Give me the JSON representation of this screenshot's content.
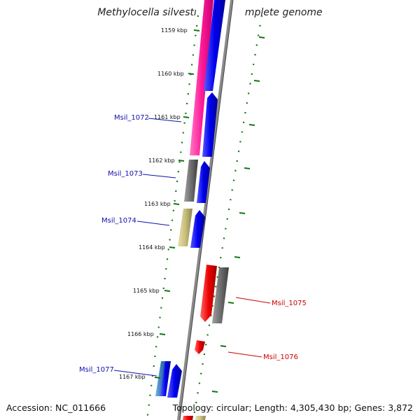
{
  "title": "Methylocella silvestris BL2, complete genome",
  "accession": "Accession: NC_011666",
  "topology": "Topology: circular; Length: 4,305,430 bp; Genes: 3,872",
  "tick_labels": [
    "1159 kbp",
    "1160 kbp",
    "1161 kbp",
    "1162 kbp",
    "1163 kbp",
    "1164 kbp",
    "1165 kbp",
    "1166 kbp",
    "1167 kbp"
  ],
  "genes": [
    {
      "name": "Msil_1072",
      "color": "#1010b0"
    },
    {
      "name": "Msil_1073",
      "color": "#1010b0"
    },
    {
      "name": "Msil_1074",
      "color": "#1010b0"
    },
    {
      "name": "Msil_1075",
      "color": "#cc0000"
    },
    {
      "name": "Msil_1076",
      "color": "#cc0000"
    },
    {
      "name": "Msil_1077",
      "color": "#1010b0"
    }
  ],
  "colors": {
    "magenta": "#ff1a9a",
    "blue": "#0000ee",
    "gray": "#6e6e6e",
    "khaki": "#c9bf7e",
    "red": "#ee0000",
    "steelblue": "#3a7fbf",
    "backbone": "#8a8a8a",
    "ticks": "#117711"
  }
}
